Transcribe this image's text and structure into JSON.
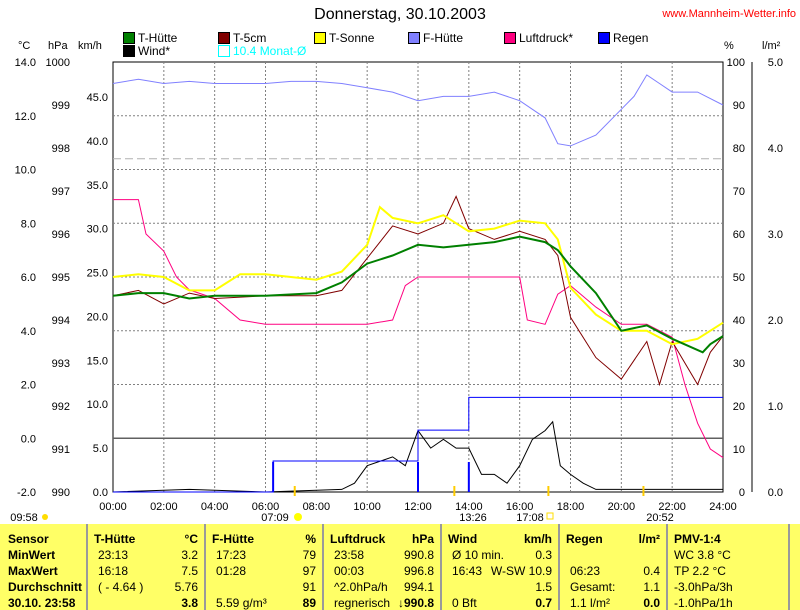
{
  "header": {
    "title": "Donnerstag, 30.10.2003",
    "url": "www.Mannheim-Wetter.info"
  },
  "legend": [
    {
      "label": "T-Hütte",
      "color": "#008000"
    },
    {
      "label": "T-5cm",
      "color": "#800000"
    },
    {
      "label": "T-Sonne",
      "color": "#ffff00"
    },
    {
      "label": "F-Hütte",
      "color": "#8080ff"
    },
    {
      "label": "Luftdruck*",
      "color": "#ff0080"
    },
    {
      "label": "Regen",
      "color": "#0000ff"
    },
    {
      "label": "Wind*",
      "color": "#000000"
    },
    {
      "label": "10.4 Monat-Ø",
      "color": "#00ffff"
    }
  ],
  "axis_units": {
    "c": "°C",
    "hpa": "hPa",
    "kmh": "km/h",
    "pct": "%",
    "rain": "l/m²"
  },
  "chart_data": {
    "type": "line",
    "title": "Donnerstag, 30.10.2003",
    "x_ticks": [
      "00:00",
      "02:00",
      "04:00",
      "06:00",
      "08:00",
      "10:00",
      "12:00",
      "14:00",
      "16:00",
      "18:00",
      "20:00",
      "22:00",
      "24:00"
    ],
    "xlim": [
      0,
      24
    ],
    "y_axes": {
      "temp": {
        "ticks": [
          "14.0",
          "12.0",
          "10.0",
          "8.0",
          "6.0",
          "4.0",
          "2.0",
          "0.0",
          "-2.0"
        ],
        "range": [
          -2,
          14
        ]
      },
      "pressure": {
        "ticks": [
          "1000",
          "999",
          "998",
          "997",
          "996",
          "995",
          "994",
          "993",
          "992",
          "991",
          "990"
        ],
        "range": [
          990,
          1000
        ]
      },
      "wind": {
        "ticks": [
          "45.0",
          "40.0",
          "35.0",
          "30.0",
          "25.0",
          "20.0",
          "15.0",
          "10.0",
          "5.0",
          "0.0"
        ],
        "range": [
          0,
          49
        ]
      },
      "humidity": {
        "ticks": [
          "100",
          "90",
          "80",
          "70",
          "60",
          "50",
          "40",
          "30",
          "20",
          "10",
          "0"
        ],
        "range": [
          0,
          100
        ]
      },
      "rain": {
        "ticks": [
          "5.0",
          "4.0",
          "3.0",
          "2.0",
          "1.0",
          "0.0"
        ],
        "range": [
          0,
          5
        ]
      }
    },
    "month_avg_temp": 10.4,
    "series": [
      {
        "name": "F-Hütte",
        "axis": "humidity",
        "color": "#8080ff",
        "points": [
          [
            0,
            95
          ],
          [
            1,
            96
          ],
          [
            2,
            95
          ],
          [
            3,
            95.5
          ],
          [
            4,
            95
          ],
          [
            5,
            95
          ],
          [
            6,
            95
          ],
          [
            7,
            95.5
          ],
          [
            8,
            95.5
          ],
          [
            9,
            95
          ],
          [
            10,
            94
          ],
          [
            11,
            93
          ],
          [
            12,
            91
          ],
          [
            13,
            92
          ],
          [
            14,
            92
          ],
          [
            15,
            93
          ],
          [
            16,
            91
          ],
          [
            17,
            87
          ],
          [
            17.5,
            81
          ],
          [
            18,
            80.5
          ],
          [
            19,
            83
          ],
          [
            20,
            89
          ],
          [
            20.5,
            92
          ],
          [
            21,
            97
          ],
          [
            21.5,
            95
          ],
          [
            22,
            93
          ],
          [
            23,
            93
          ],
          [
            24,
            90
          ]
        ]
      },
      {
        "name": "Luftdruck*",
        "axis": "pressure",
        "color": "#ff0080",
        "points": [
          [
            0,
            996.8
          ],
          [
            1,
            996.8
          ],
          [
            1.3,
            996
          ],
          [
            2,
            995.6
          ],
          [
            2.5,
            995
          ],
          [
            3,
            994.7
          ],
          [
            4,
            994.5
          ],
          [
            5,
            994
          ],
          [
            6,
            993.9
          ],
          [
            8,
            993.9
          ],
          [
            10,
            993.9
          ],
          [
            11,
            994
          ],
          [
            11.5,
            994.8
          ],
          [
            12,
            995
          ],
          [
            16,
            995
          ],
          [
            16.3,
            994
          ],
          [
            17,
            993.9
          ],
          [
            17.5,
            994.6
          ],
          [
            18,
            994.8
          ],
          [
            19,
            994.3
          ],
          [
            20,
            993.9
          ],
          [
            21,
            993.9
          ],
          [
            22,
            993.6
          ],
          [
            22.5,
            992.5
          ],
          [
            23,
            991.6
          ],
          [
            23.5,
            991
          ],
          [
            24,
            990.8
          ]
        ]
      },
      {
        "name": "Wind*",
        "axis": "wind",
        "color": "#000000",
        "points": [
          [
            0,
            0
          ],
          [
            3,
            0.3
          ],
          [
            6,
            0
          ],
          [
            9,
            0.3
          ],
          [
            9.5,
            1
          ],
          [
            10,
            3
          ],
          [
            11,
            4
          ],
          [
            11.5,
            3
          ],
          [
            12,
            7
          ],
          [
            12.5,
            5
          ],
          [
            13,
            6
          ],
          [
            13.5,
            5
          ],
          [
            14,
            5
          ],
          [
            14.5,
            2
          ],
          [
            15,
            2
          ],
          [
            15.5,
            1
          ],
          [
            16,
            3
          ],
          [
            16.5,
            6
          ],
          [
            17,
            7
          ],
          [
            17.3,
            8
          ],
          [
            17.6,
            3
          ],
          [
            18,
            2
          ],
          [
            18.5,
            1
          ],
          [
            19,
            0.3
          ],
          [
            24,
            0.3
          ]
        ]
      },
      {
        "name": "T-5cm",
        "axis": "temp",
        "color": "#800000",
        "points": [
          [
            0,
            5.3
          ],
          [
            1,
            5.5
          ],
          [
            2,
            5.0
          ],
          [
            3,
            5.4
          ],
          [
            4,
            5.2
          ],
          [
            6,
            5.3
          ],
          [
            8,
            5.3
          ],
          [
            9,
            5.5
          ],
          [
            10,
            6.7
          ],
          [
            11,
            7.9
          ],
          [
            12,
            7.6
          ],
          [
            13,
            8.0
          ],
          [
            13.5,
            9.0
          ],
          [
            14,
            7.8
          ],
          [
            15,
            7.4
          ],
          [
            16,
            7.7
          ],
          [
            17,
            7.4
          ],
          [
            17.5,
            6.8
          ],
          [
            18,
            4.5
          ],
          [
            19,
            3.0
          ],
          [
            20,
            2.2
          ],
          [
            21,
            3.6
          ],
          [
            21.5,
            2.0
          ],
          [
            22,
            3.6
          ],
          [
            23,
            2.0
          ],
          [
            23.5,
            3.2
          ],
          [
            24,
            3.8
          ]
        ]
      },
      {
        "name": "T-Sonne",
        "axis": "temp",
        "color": "#ffff00",
        "points": [
          [
            0,
            6.0
          ],
          [
            1,
            6.1
          ],
          [
            2,
            6.0
          ],
          [
            3,
            5.5
          ],
          [
            4,
            5.5
          ],
          [
            5,
            6.1
          ],
          [
            6,
            6.1
          ],
          [
            7,
            6.0
          ],
          [
            8,
            5.9
          ],
          [
            9,
            6.2
          ],
          [
            10,
            7.2
          ],
          [
            10.5,
            8.6
          ],
          [
            11,
            8.2
          ],
          [
            12,
            8.0
          ],
          [
            13,
            8.3
          ],
          [
            14,
            7.7
          ],
          [
            15,
            7.8
          ],
          [
            16,
            8.1
          ],
          [
            17,
            8.0
          ],
          [
            17.5,
            7.4
          ],
          [
            18,
            5.6
          ],
          [
            19,
            4.6
          ],
          [
            20,
            4.0
          ],
          [
            21,
            4.0
          ],
          [
            22,
            3.5
          ],
          [
            23,
            3.7
          ],
          [
            24,
            4.3
          ]
        ]
      },
      {
        "name": "T-Hütte",
        "axis": "temp",
        "color": "#008000",
        "points": [
          [
            0,
            5.3
          ],
          [
            1,
            5.4
          ],
          [
            2,
            5.4
          ],
          [
            3,
            5.2
          ],
          [
            4,
            5.3
          ],
          [
            6,
            5.3
          ],
          [
            8,
            5.4
          ],
          [
            9,
            5.8
          ],
          [
            10,
            6.5
          ],
          [
            11,
            6.8
          ],
          [
            12,
            7.2
          ],
          [
            13,
            7.1
          ],
          [
            14,
            7.2
          ],
          [
            15,
            7.3
          ],
          [
            16,
            7.5
          ],
          [
            17,
            7.3
          ],
          [
            17.5,
            7.0
          ],
          [
            18,
            6.4
          ],
          [
            19,
            5.4
          ],
          [
            20,
            4.0
          ],
          [
            21,
            4.2
          ],
          [
            22,
            3.7
          ],
          [
            23.2,
            3.2
          ],
          [
            23.5,
            3.5
          ],
          [
            24,
            3.8
          ]
        ]
      },
      {
        "name": "Regen",
        "axis": "rain",
        "color": "#0000ff",
        "type": "step",
        "points": [
          [
            0,
            0
          ],
          [
            6.3,
            0
          ],
          [
            6.3,
            0.36
          ],
          [
            12,
            0.36
          ],
          [
            12,
            0.72
          ],
          [
            14,
            0.72
          ],
          [
            14,
            1.1
          ],
          [
            24,
            1.1
          ]
        ]
      }
    ]
  },
  "markers": [
    {
      "label": "09:58"
    },
    {
      "label": "07:09"
    },
    {
      "label": "13:26"
    },
    {
      "label": "17:08"
    },
    {
      "label": "20:52"
    }
  ],
  "table": {
    "sensor": {
      "h": "Sensor",
      "r1": "MinWert",
      "r2": "MaxWert",
      "r3": "Durchschnitt",
      "r4": "30.10. 23:58"
    },
    "thuette": {
      "h": "T-Hütte",
      "u": "°C",
      "r1a": "23:13",
      "r1b": "3.2",
      "r2a": "16:18",
      "r2b": "7.5",
      "r3a": "( - 4.64 )",
      "r3b": "5.76",
      "r4b": "3.8"
    },
    "fhuette": {
      "h": "F-Hütte",
      "u": "%",
      "r1a": "17:23",
      "r1b": "79",
      "r2a": "01:28",
      "r2b": "97",
      "r3b": "91",
      "r4a": "5.59 g/m³",
      "r4b": "89"
    },
    "luft": {
      "h": "Luftdruck",
      "u": "hPa",
      "r1a": "23:58",
      "r1b": "990.8",
      "r2a": "00:03",
      "r2b": "996.8",
      "r3a": "^2.0hPa/h",
      "r3b": "994.1",
      "r4a": "regnerisch",
      "r4b": "↓990.8"
    },
    "wind": {
      "h": "Wind",
      "u": "km/h",
      "r1a": "Ø 10 min.",
      "r1b": "0.3",
      "r2a": "16:43",
      "r2b": "W-SW 10.9",
      "r3b": "1.5",
      "r4a": "0 Bft",
      "r4b": "0.7"
    },
    "regen": {
      "h": "Regen",
      "u": "l/m²",
      "r2a": "06:23",
      "r2b": "0.4",
      "r3a": "Gesamt:",
      "r3b": "1.1",
      "r4a": "1.1 l/m²",
      "r4b": "0.0"
    },
    "pmv": {
      "h": "PMV-1:4",
      "r1": "WC 3.8 °C",
      "r2": "TP 2.2 °C",
      "r3": "-3.0hPa/3h",
      "r4": "-1.0hPa/1h"
    }
  }
}
